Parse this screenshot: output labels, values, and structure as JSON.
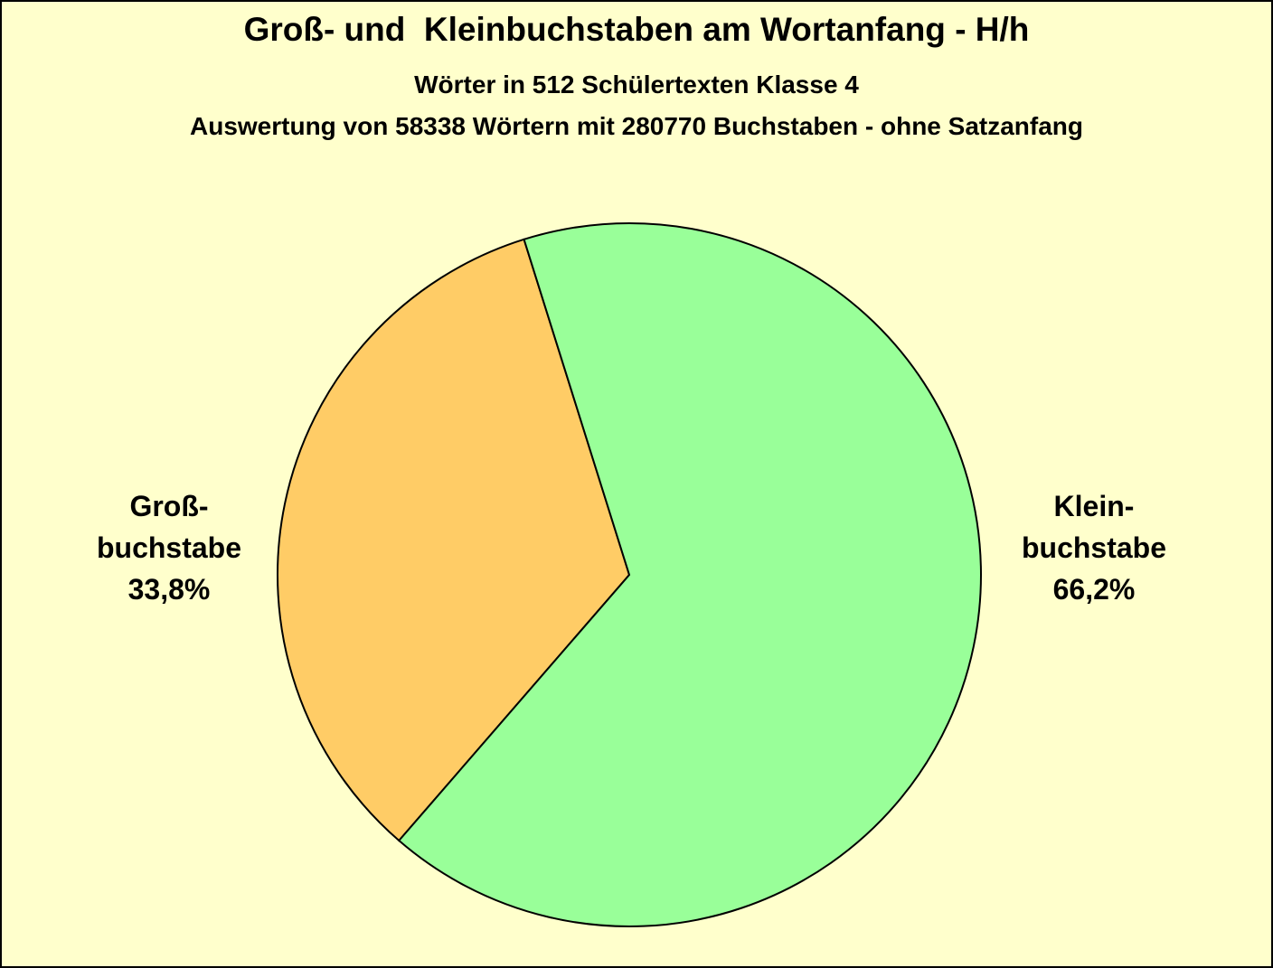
{
  "chart_data": {
    "type": "pie",
    "title": "Groß- und  Kleinbuchstaben am Wortanfang - H/h",
    "subtitles": [
      "Wörter in 512 Schülertexten Klasse 4",
      "Auswertung von 58338 Wörtern mit 280770 Buchstaben - ohne Satzanfang"
    ],
    "categories": [
      "Groß-\nbuchstabe",
      "Klein-\nbuchstabe"
    ],
    "values": [
      33.8,
      66.2
    ],
    "value_labels": [
      "33,8%",
      "66,2%"
    ],
    "colors": [
      "#ffcc66",
      "#99ff99"
    ],
    "background": "#ffffcc"
  }
}
